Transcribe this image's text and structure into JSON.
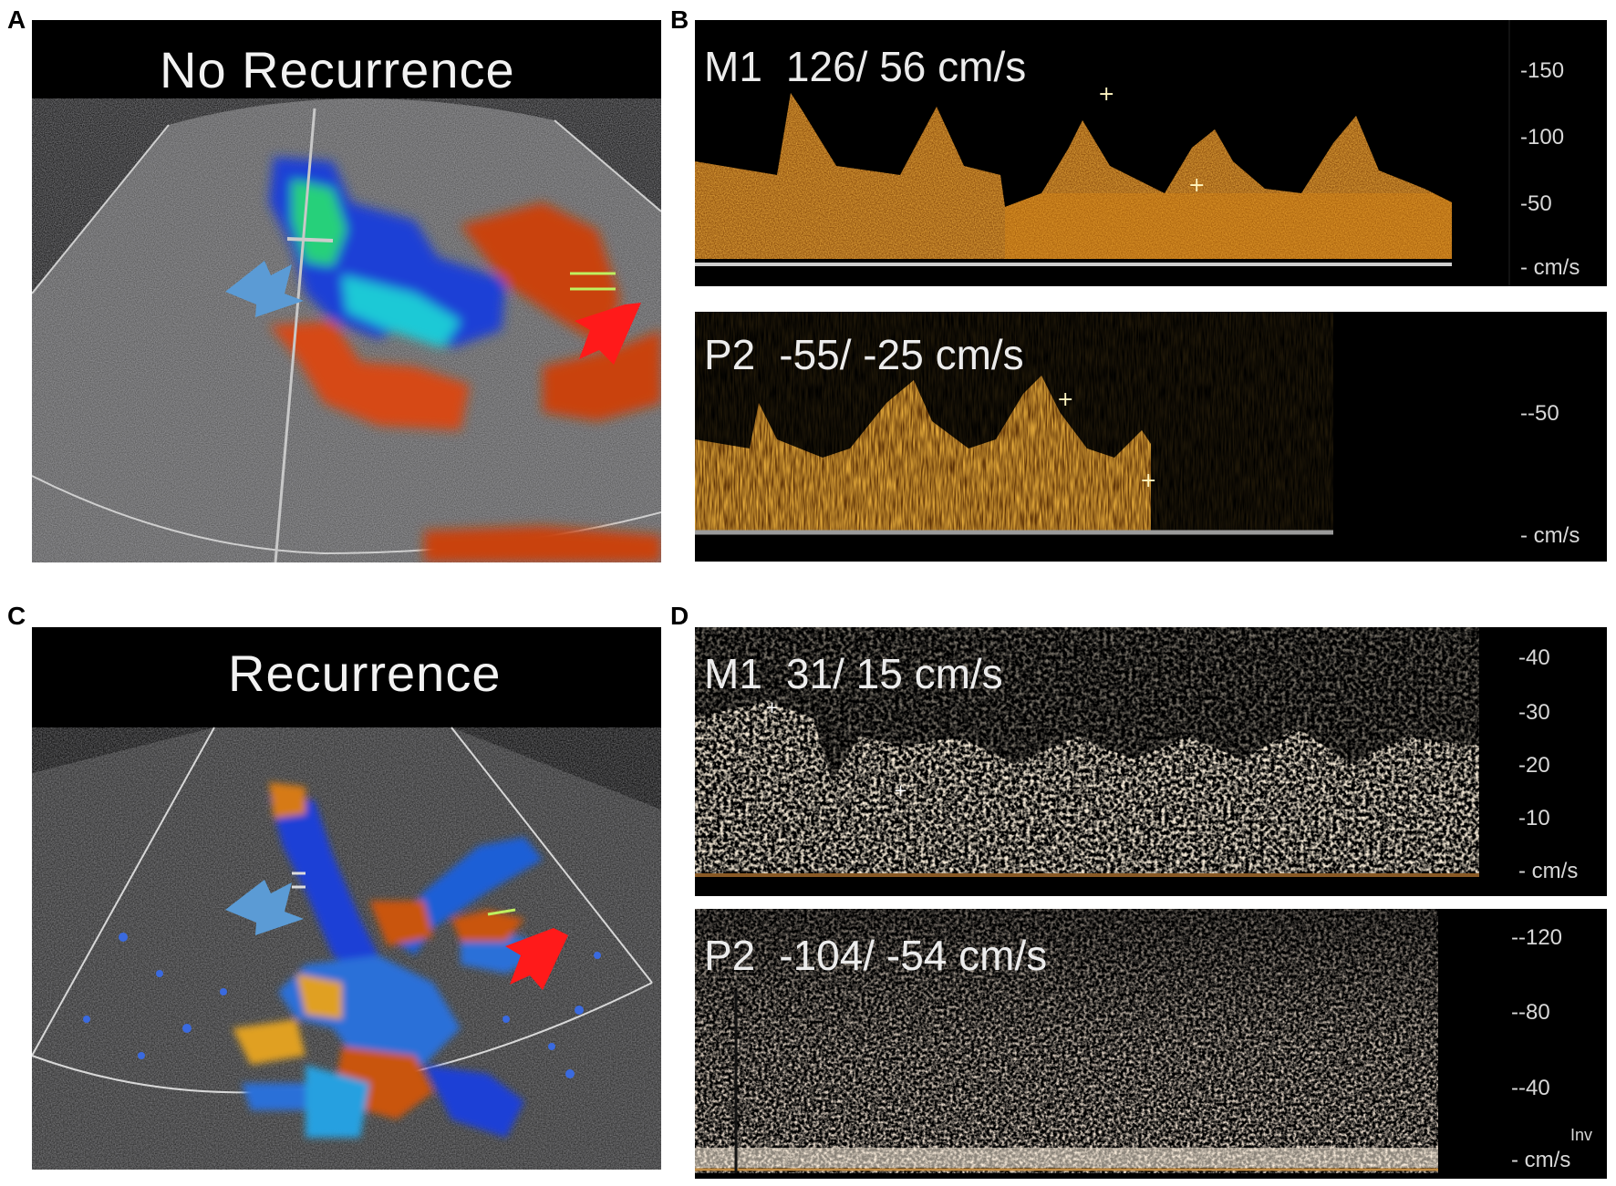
{
  "panels": {
    "a": {
      "letter": "A",
      "title": "No Recurrence"
    },
    "b": {
      "letter": "B",
      "m1": {
        "name": "M1",
        "velocity": "126/ 56 cm/s",
        "ticks": [
          "-150",
          "-100",
          "-50",
          "- cm/s"
        ]
      },
      "p2": {
        "name": "P2",
        "velocity": "-55/ -25 cm/s",
        "ticks": [
          "--50",
          "- cm/s"
        ]
      }
    },
    "c": {
      "letter": "C",
      "title": "Recurrence"
    },
    "d": {
      "letter": "D",
      "m1": {
        "name": "M1",
        "velocity": "31/ 15 cm/s",
        "ticks": [
          "-40",
          "-30",
          "-20",
          "-10",
          "- cm/s"
        ]
      },
      "p2": {
        "name": "P2",
        "velocity": "-104/ -54 cm/s",
        "ticks": [
          "--120",
          "--80",
          "--40",
          "Inv",
          "- cm/s"
        ]
      }
    }
  },
  "colors": {
    "background": "#000000",
    "doppler_orange": "#d9730f",
    "doppler_cream": "#f0d9b5",
    "flow_blue": "#1a3fd6",
    "flow_red": "#d64a12",
    "arrow_blue": "#5b9bd5",
    "arrow_red": "#ff1a1a"
  }
}
